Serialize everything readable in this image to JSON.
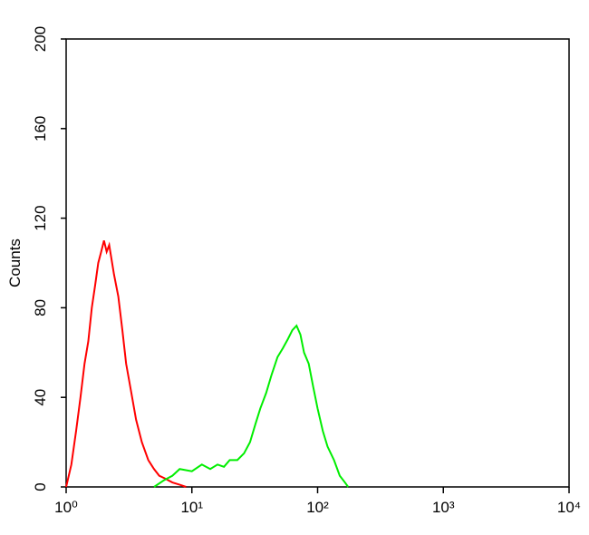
{
  "chart_data": {
    "type": "line",
    "ylabel": "Counts",
    "xscale": "log",
    "xlim": [
      1,
      10000
    ],
    "xticks": [
      {
        "value": 1,
        "label": "10⁰"
      },
      {
        "value": 10,
        "label": "10¹"
      },
      {
        "value": 100,
        "label": "10²"
      },
      {
        "value": 1000,
        "label": "10³"
      },
      {
        "value": 10000,
        "label": "10⁴"
      }
    ],
    "ylim": [
      0,
      200
    ],
    "yticks": [
      0,
      40,
      80,
      120,
      160,
      200
    ],
    "series": [
      {
        "color": "#ff0000",
        "x": [
          1.0,
          1.1,
          1.2,
          1.3,
          1.4,
          1.5,
          1.6,
          1.7,
          1.8,
          1.9,
          2.0,
          2.1,
          2.2,
          2.4,
          2.6,
          2.8,
          3.0,
          3.3,
          3.6,
          4.0,
          4.5,
          5.0,
          5.5,
          6,
          7,
          8,
          9
        ],
        "values": [
          0,
          10,
          25,
          40,
          55,
          65,
          80,
          90,
          100,
          105,
          110,
          105,
          108,
          95,
          85,
          70,
          55,
          42,
          30,
          20,
          12,
          8,
          5,
          4,
          2,
          1,
          0
        ]
      },
      {
        "color": "#00ee00",
        "x": [
          5,
          6,
          7,
          8,
          10,
          12,
          14,
          16,
          18,
          20,
          23,
          26,
          29,
          32,
          35,
          39,
          43,
          48,
          53,
          58,
          63,
          68,
          73,
          78,
          85,
          92,
          100,
          110,
          120,
          135,
          150,
          165,
          175
        ],
        "values": [
          0,
          3,
          5,
          8,
          7,
          10,
          8,
          10,
          9,
          12,
          12,
          15,
          20,
          28,
          35,
          42,
          50,
          58,
          62,
          66,
          70,
          72,
          68,
          60,
          55,
          45,
          35,
          25,
          18,
          12,
          5,
          2,
          0
        ]
      }
    ]
  }
}
